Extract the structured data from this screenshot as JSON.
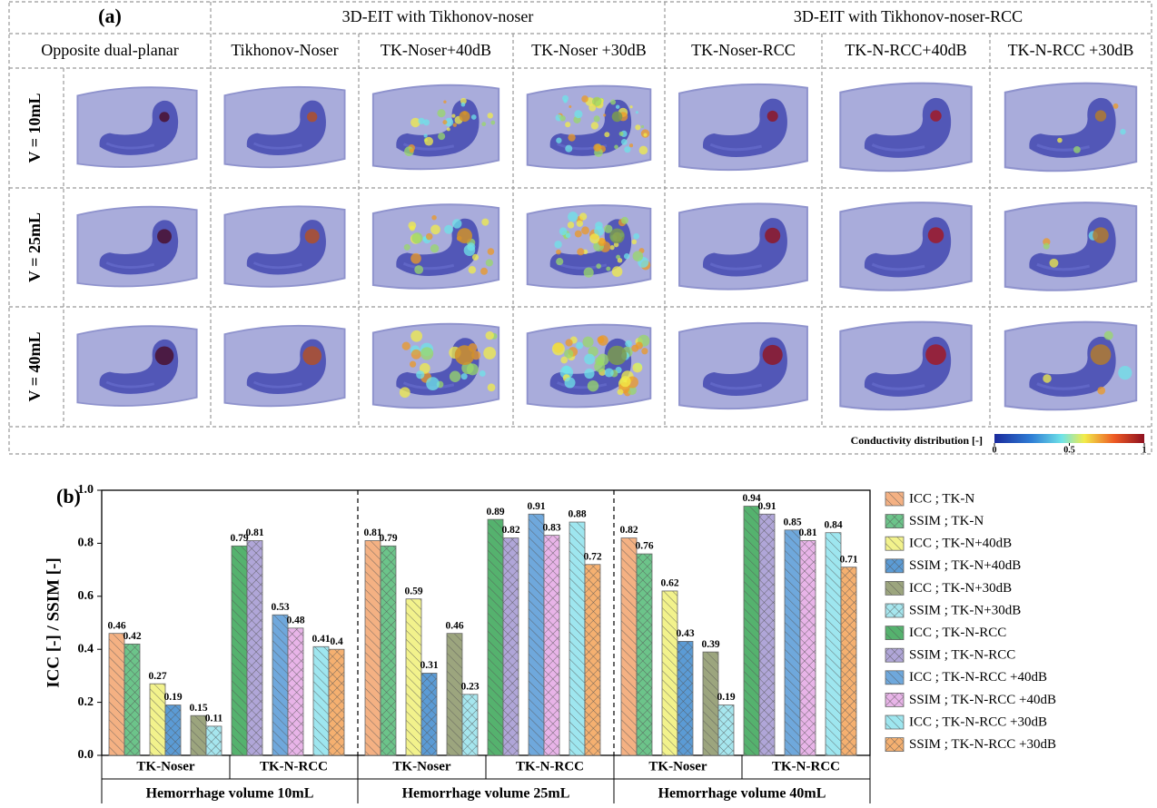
{
  "panel_a": {
    "label": "(a)",
    "group_headers": [
      "3D-EIT with Tikhonov-noser",
      "3D-EIT with Tikhonov-noser-RCC"
    ],
    "reference_header": "Opposite dual-planar",
    "columns": [
      "Tikhonov-Noser",
      "TK-Noser+40dB",
      "TK-Noser +30dB",
      "TK-Noser-RCC",
      "TK-N-RCC+40dB",
      "TK-N-RCC +30dB"
    ],
    "rows": [
      "V = 10mL",
      "V = 25mL",
      "V = 40mL"
    ],
    "colorbar": {
      "label": "Conductivity distribution [-]",
      "ticks": [
        0,
        0.5,
        1
      ]
    }
  },
  "chart_data": {
    "type": "bar",
    "panel_label": "(b)",
    "y_label": "ICC [-]  /  SSIM [-]",
    "categories": [
      "Hemorrhage volume 10mL",
      "Hemorrhage volume 25mL",
      "Hemorrhage volume 40mL"
    ],
    "subcategories": [
      "TK-Noser",
      "TK-N-RCC"
    ],
    "series": [
      {
        "name": "ICC ; TK-N",
        "color": "#f4b183",
        "values": [
          0.46,
          0.81,
          0.82
        ]
      },
      {
        "name": "SSIM ; TK-N",
        "color": "#6cc48a",
        "values": [
          0.42,
          0.79,
          0.76
        ]
      },
      {
        "name": "ICC ; TK-N+40dB",
        "color": "#f2f28c",
        "values": [
          0.27,
          0.59,
          0.62
        ]
      },
      {
        "name": "SSIM ; TK-N+40dB",
        "color": "#5b9bd5",
        "values": [
          0.19,
          0.31,
          0.43
        ]
      },
      {
        "name": "ICC ; TK-N+30dB",
        "color": "#9ca57e",
        "values": [
          0.15,
          0.46,
          0.39
        ]
      },
      {
        "name": "SSIM ; TK-N+30dB",
        "color": "#a6e6ee",
        "values": [
          0.11,
          0.23,
          0.19
        ]
      },
      {
        "name": "ICC ; TK-N-RCC",
        "color": "#55b26e",
        "values": [
          0.79,
          0.89,
          0.94
        ]
      },
      {
        "name": "SSIM ; TK-N-RCC",
        "color": "#b0a6d8",
        "values": [
          0.81,
          0.82,
          0.91
        ]
      },
      {
        "name": "ICC ; TK-N-RCC +40dB",
        "color": "#6fa8dc",
        "values": [
          0.53,
          0.91,
          0.85
        ]
      },
      {
        "name": "SSIM ; TK-N-RCC +40dB",
        "color": "#e8b4e8",
        "values": [
          0.48,
          0.83,
          0.81
        ]
      },
      {
        "name": "ICC ; TK-N-RCC +30dB",
        "color": "#9ee6ef",
        "values": [
          0.41,
          0.88,
          0.84
        ]
      },
      {
        "name": "SSIM ; TK-N-RCC +30dB",
        "color": "#f5b070",
        "values": [
          0.4,
          0.72,
          0.71
        ]
      }
    ],
    "ylim": [
      0,
      1
    ],
    "yticks": [
      {
        "value": 0,
        "label": "0.0"
      },
      0.2,
      0.4,
      0.6,
      0.8,
      {
        "value": 1,
        "label": "1.0"
      }
    ]
  }
}
